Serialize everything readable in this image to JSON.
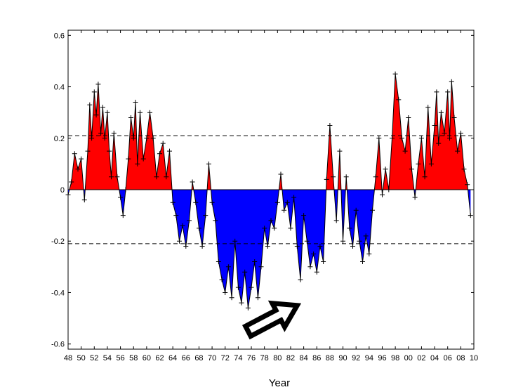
{
  "chart_data": {
    "type": "area",
    "title": "",
    "xlabel": "Year",
    "ylabel": "",
    "xlim": [
      1948,
      2010
    ],
    "ylim": [
      -0.62,
      0.62
    ],
    "x_tick_labels": [
      "48",
      "50",
      "52",
      "54",
      "56",
      "58",
      "60",
      "62",
      "64",
      "66",
      "68",
      "70",
      "72",
      "74",
      "76",
      "78",
      "80",
      "82",
      "84",
      "86",
      "88",
      "90",
      "92",
      "94",
      "96",
      "98",
      "00",
      "02",
      "04",
      "06",
      "08",
      "10"
    ],
    "y_tick_labels": [
      "-0.6",
      "-0.4",
      "-0.2",
      "0",
      "0.2",
      "0.4",
      "0.6"
    ],
    "threshold_lines": [
      0.21,
      -0.21
    ],
    "positive_color": "#ff0000",
    "negative_color": "#0000ff",
    "marker": "plus",
    "series": [
      {
        "x": [
          1948.0,
          1948.5,
          1949.0,
          1949.5,
          1950.0,
          1950.5,
          1951.0,
          1951.3,
          1951.6,
          1952.0,
          1952.3,
          1952.6,
          1953.0,
          1953.3,
          1953.6,
          1954.0,
          1954.3,
          1954.6,
          1955.0,
          1955.5,
          1956.0,
          1956.4,
          1956.8,
          1957.2,
          1957.6,
          1958.0,
          1958.3,
          1958.6,
          1959.0,
          1959.5,
          1960.0,
          1960.5,
          1961.0,
          1961.5,
          1962.0,
          1962.5,
          1963.0,
          1963.5,
          1964.0,
          1964.5,
          1965.0,
          1965.5,
          1966.0,
          1966.5,
          1967.0,
          1967.5,
          1968.0,
          1968.5,
          1969.0,
          1969.5,
          1970.0,
          1970.5,
          1971.0,
          1971.5,
          1972.0,
          1972.5,
          1973.0,
          1973.5,
          1974.0,
          1974.5,
          1975.0,
          1975.5,
          1976.0,
          1976.5,
          1977.0,
          1977.5,
          1978.0,
          1978.5,
          1979.0,
          1979.5,
          1980.0,
          1980.5,
          1981.0,
          1981.5,
          1982.0,
          1982.5,
          1983.0,
          1983.5,
          1984.0,
          1984.5,
          1985.0,
          1985.5,
          1986.0,
          1986.5,
          1987.0,
          1987.5,
          1988.0,
          1988.5,
          1989.0,
          1989.5,
          1990.0,
          1990.5,
          1991.0,
          1991.5,
          1992.0,
          1992.5,
          1993.0,
          1993.5,
          1994.0,
          1994.5,
          1995.0,
          1995.5,
          1996.0,
          1996.5,
          1997.0,
          1997.5,
          1998.0,
          1998.5,
          1999.0,
          1999.5,
          2000.0,
          2000.5,
          2001.0,
          2001.5,
          2002.0,
          2002.5,
          2003.0,
          2003.5,
          2004.0,
          2004.3,
          2004.6,
          2005.0,
          2005.5,
          2006.0,
          2006.3,
          2006.6,
          2007.0,
          2007.5,
          2008.0,
          2008.5,
          2009.0,
          2009.5
        ],
        "y": [
          -0.02,
          0.03,
          0.14,
          0.08,
          0.12,
          -0.04,
          0.15,
          0.33,
          0.2,
          0.38,
          0.29,
          0.41,
          0.22,
          0.32,
          0.2,
          0.3,
          0.15,
          0.05,
          0.22,
          0.05,
          -0.03,
          -0.1,
          0.0,
          0.12,
          0.28,
          0.2,
          0.34,
          0.1,
          0.3,
          0.12,
          0.2,
          0.3,
          0.2,
          0.05,
          0.14,
          0.18,
          0.05,
          0.15,
          -0.05,
          -0.1,
          -0.2,
          -0.14,
          -0.22,
          -0.12,
          0.03,
          -0.05,
          -0.15,
          -0.22,
          -0.1,
          0.1,
          -0.05,
          -0.12,
          -0.28,
          -0.35,
          -0.4,
          -0.3,
          -0.42,
          -0.2,
          -0.38,
          -0.44,
          -0.32,
          -0.46,
          -0.38,
          -0.28,
          -0.42,
          -0.3,
          -0.15,
          -0.22,
          -0.12,
          -0.15,
          -0.05,
          0.06,
          -0.08,
          -0.05,
          -0.15,
          -0.03,
          -0.22,
          -0.35,
          -0.1,
          -0.2,
          -0.3,
          -0.25,
          -0.32,
          -0.22,
          -0.28,
          0.04,
          0.25,
          0.05,
          -0.12,
          0.15,
          -0.2,
          0.05,
          -0.15,
          -0.22,
          -0.08,
          -0.2,
          -0.28,
          -0.18,
          -0.25,
          -0.08,
          0.05,
          0.2,
          -0.02,
          0.08,
          0.0,
          0.2,
          0.45,
          0.35,
          0.2,
          0.15,
          0.28,
          0.08,
          -0.03,
          0.1,
          0.2,
          0.05,
          0.32,
          0.1,
          0.25,
          0.38,
          0.18,
          0.3,
          0.22,
          0.38,
          0.2,
          0.42,
          0.28,
          0.15,
          0.22,
          0.08,
          0.02,
          -0.1
        ]
      }
    ],
    "annotations": [
      {
        "type": "arrow",
        "style": "outlined-block",
        "from": [
          1975.5,
          -0.55
        ],
        "to": [
          1983.0,
          -0.45
        ]
      }
    ]
  }
}
